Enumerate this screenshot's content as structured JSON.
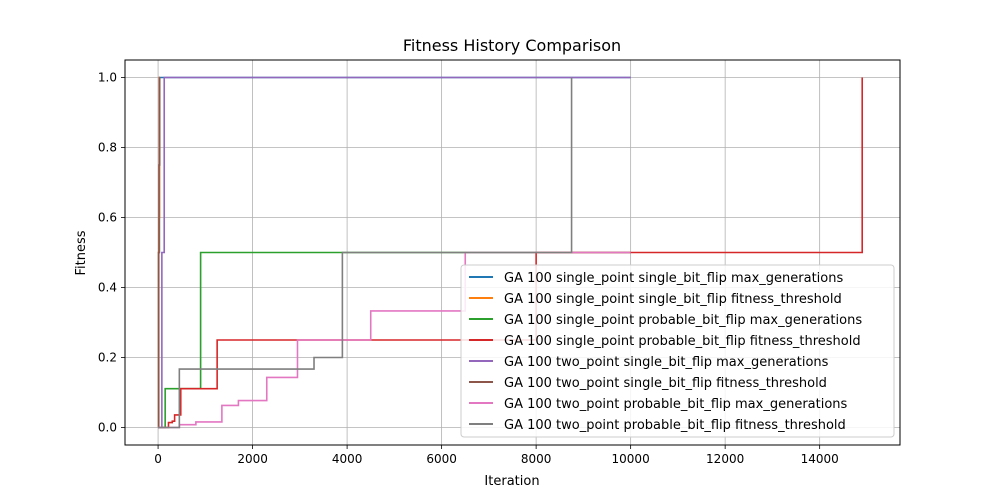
{
  "chart_data": {
    "type": "line",
    "title": "Fitness History Comparison",
    "xlabel": "Iteration",
    "ylabel": "Fitness",
    "xlim": [
      -700,
      15700
    ],
    "ylim": [
      -0.05,
      1.05
    ],
    "xticks": [
      0,
      2000,
      4000,
      6000,
      8000,
      10000,
      12000,
      14000
    ],
    "xtick_labels": [
      "0",
      "2000",
      "4000",
      "6000",
      "8000",
      "10000",
      "12000",
      "14000"
    ],
    "yticks": [
      0.0,
      0.2,
      0.4,
      0.6,
      0.8,
      1.0
    ],
    "ytick_labels": [
      "0.0",
      "0.2",
      "0.4",
      "0.6",
      "0.8",
      "1.0"
    ],
    "grid": true,
    "legend_position": "lower-right",
    "series": [
      {
        "name": "GA 100 single_point single_bit_flip max_generations",
        "color": "#1f77b4",
        "x": [
          0,
          15,
          15,
          28,
          28,
          35,
          35,
          10000
        ],
        "y": [
          0,
          0,
          0.5,
          0.5,
          0.75,
          0.75,
          1.0,
          1.0
        ]
      },
      {
        "name": "GA 100 single_point single_bit_flip fitness_threshold",
        "color": "#ff7f0e",
        "x": [
          0,
          12,
          12,
          22,
          22,
          30,
          30,
          40
        ],
        "y": [
          0,
          0,
          0.5,
          0.5,
          0.6,
          0.6,
          1.0,
          1.0
        ]
      },
      {
        "name": "GA 100 single_point probable_bit_flip max_generations",
        "color": "#2ca02c",
        "x": [
          0,
          150,
          150,
          900,
          900,
          10000
        ],
        "y": [
          0,
          0,
          0.111,
          0.111,
          0.5,
          0.5
        ]
      },
      {
        "name": "GA 100 single_point probable_bit_flip fitness_threshold",
        "color": "#d62728",
        "x": [
          0,
          220,
          220,
          300,
          300,
          350,
          350,
          480,
          480,
          1250,
          1250,
          8000,
          8000,
          14900,
          14900
        ],
        "y": [
          0,
          0,
          0.014,
          0.014,
          0.018,
          0.018,
          0.036,
          0.036,
          0.111,
          0.111,
          0.25,
          0.25,
          0.5,
          0.5,
          1.0
        ]
      },
      {
        "name": "GA 100 two_point single_bit_flip max_generations",
        "color": "#9467bd",
        "x": [
          0,
          80,
          80,
          130,
          130,
          10000
        ],
        "y": [
          0,
          0,
          0.5,
          0.5,
          1.0,
          1.0
        ]
      },
      {
        "name": "GA 100 two_point single_bit_flip fitness_threshold",
        "color": "#8c564b",
        "x": [
          0,
          10,
          10,
          20,
          20,
          30,
          30,
          35
        ],
        "y": [
          0,
          0,
          0.5,
          0.5,
          0.75,
          0.75,
          1.0,
          1.0
        ]
      },
      {
        "name": "GA 100 two_point probable_bit_flip max_generations",
        "color": "#e377c2",
        "x": [
          0,
          450,
          450,
          800,
          800,
          1350,
          1350,
          1700,
          1700,
          2300,
          2300,
          2950,
          2950,
          4500,
          4500,
          6500,
          6500,
          10000
        ],
        "y": [
          0,
          0,
          0.008,
          0.008,
          0.016,
          0.016,
          0.063,
          0.063,
          0.077,
          0.077,
          0.143,
          0.143,
          0.25,
          0.25,
          0.333,
          0.333,
          0.5,
          0.5
        ]
      },
      {
        "name": "GA 100 two_point probable_bit_flip fitness_threshold",
        "color": "#7f7f7f",
        "x": [
          0,
          450,
          450,
          3300,
          3300,
          3900,
          3900,
          8750,
          8750
        ],
        "y": [
          0,
          0,
          0.167,
          0.167,
          0.2,
          0.2,
          0.5,
          0.5,
          1.0
        ]
      }
    ]
  }
}
